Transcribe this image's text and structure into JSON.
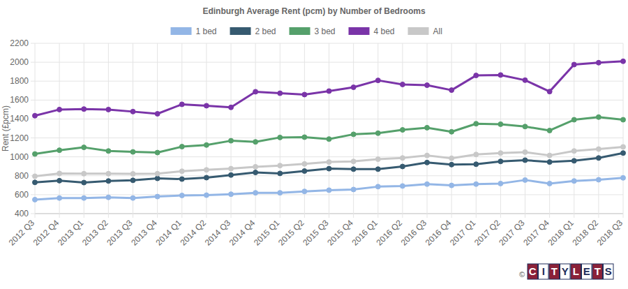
{
  "chart_data": {
    "type": "line",
    "title": "Edinburgh Average Rent (pcm) by Number of Bedrooms",
    "y_label": "Rent (£pcm)",
    "categories": [
      "2012 Q3",
      "2012 Q4",
      "2013 Q1",
      "2013 Q2",
      "2013 Q3",
      "2013 Q4",
      "2014 Q1",
      "2014 Q2",
      "2014 Q3",
      "2014 Q4",
      "2015 Q1",
      "2015 Q2",
      "2015 Q3",
      "2015 Q4",
      "2016 Q1",
      "2016 Q2",
      "2016 Q3",
      "2016 Q4",
      "2017 Q1",
      "2017 Q2",
      "2017 Q3",
      "2017 Q4",
      "2018 Q1",
      "2018 Q2",
      "2018 Q3"
    ],
    "series": [
      {
        "name": "1 bed",
        "color": "#93b6e6",
        "values": [
          548,
          565,
          565,
          572,
          565,
          580,
          592,
          595,
          605,
          620,
          620,
          635,
          648,
          655,
          685,
          692,
          712,
          698,
          712,
          718,
          755,
          718,
          745,
          758,
          778
        ]
      },
      {
        "name": "2 bed",
        "color": "#365a70",
        "values": [
          730,
          748,
          728,
          745,
          752,
          772,
          765,
          780,
          808,
          835,
          825,
          850,
          875,
          870,
          870,
          898,
          940,
          918,
          922,
          952,
          965,
          945,
          958,
          988,
          1040
        ]
      },
      {
        "name": "3 bed",
        "color": "#55a06b",
        "values": [
          1030,
          1070,
          1100,
          1062,
          1052,
          1045,
          1108,
          1125,
          1170,
          1158,
          1205,
          1208,
          1188,
          1238,
          1250,
          1285,
          1308,
          1265,
          1350,
          1345,
          1320,
          1278,
          1392,
          1420,
          1392
        ]
      },
      {
        "name": "4 bed",
        "color": "#7a34a8",
        "values": [
          1435,
          1500,
          1505,
          1500,
          1478,
          1455,
          1555,
          1540,
          1523,
          1688,
          1672,
          1658,
          1695,
          1735,
          1808,
          1765,
          1757,
          1705,
          1860,
          1865,
          1810,
          1690,
          1975,
          1995,
          2010
        ]
      },
      {
        "name": "All",
        "color": "#c8c8c8",
        "values": [
          795,
          825,
          822,
          822,
          820,
          822,
          848,
          862,
          875,
          895,
          908,
          925,
          945,
          952,
          975,
          988,
          1015,
          985,
          1025,
          1040,
          1050,
          1015,
          1062,
          1082,
          1105
        ]
      }
    ],
    "ylim": [
      400,
      2200
    ],
    "yticks": [
      400,
      600,
      800,
      1000,
      1200,
      1400,
      1600,
      1800,
      2000,
      2200
    ],
    "grid": true,
    "legend": "top",
    "marker": "circle",
    "annotations": [
      "©",
      "CITYLETS"
    ]
  }
}
